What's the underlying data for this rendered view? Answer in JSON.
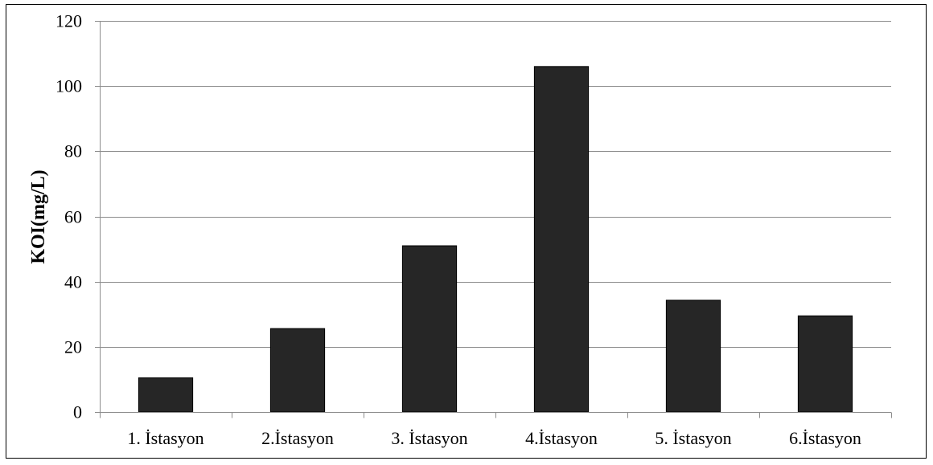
{
  "chart_data": {
    "type": "bar",
    "title": "",
    "xlabel": "",
    "ylabel": "KOI(mg/L)",
    "categories": [
      "1. İstasyon",
      "2.İstasyon",
      "3. İstasyon",
      "4.İstasyon",
      "5. İstasyon",
      "6.İstasyon"
    ],
    "values": [
      10.5,
      25.6,
      51.0,
      106.0,
      34.3,
      29.5
    ],
    "ylim": [
      0,
      120
    ],
    "yticks": [
      "0",
      "20",
      "40",
      "60",
      "80",
      "100",
      "120"
    ],
    "grid": true,
    "legend": "none",
    "bar_color": "#262626",
    "bar_edge_color": "#000000"
  }
}
